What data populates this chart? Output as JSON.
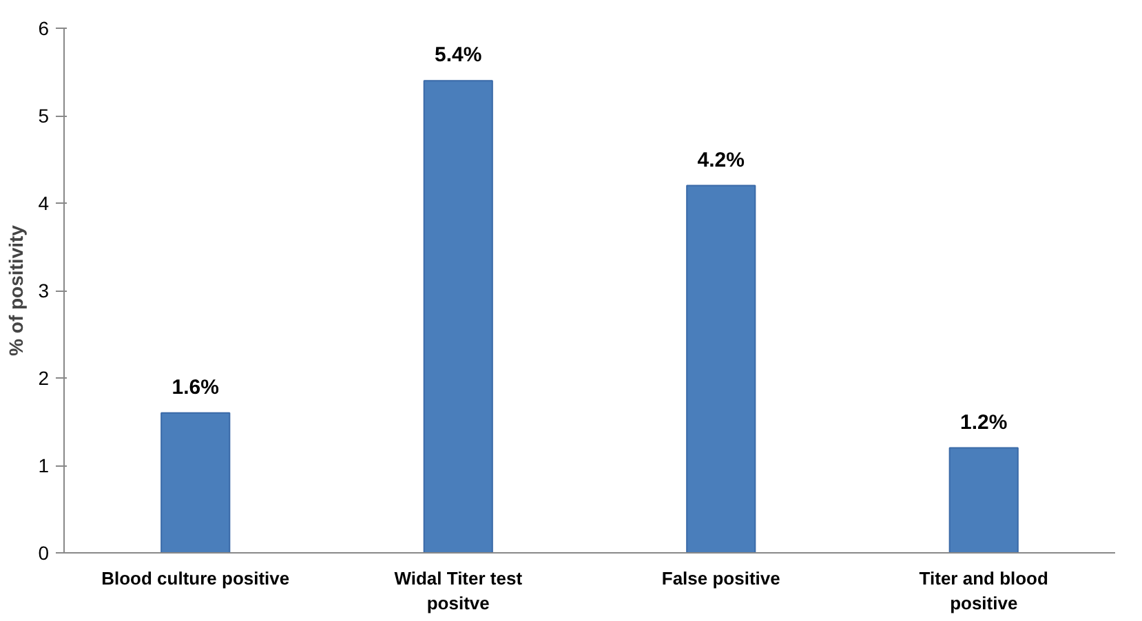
{
  "chart_data": {
    "type": "bar",
    "ylabel": "% of positivity",
    "categories": [
      "Blood culture positive",
      "Widal Titer test positve",
      "False positive",
      "Titer and blood positive"
    ],
    "values": [
      1.6,
      5.4,
      4.2,
      1.2
    ],
    "value_labels": [
      "1.6%",
      "5.4%",
      "4.2%",
      "1.2%"
    ],
    "color": "#4a7ebb",
    "ylim": [
      0,
      6
    ],
    "yticks": [
      0,
      1,
      2,
      3,
      4,
      5,
      6
    ],
    "grid": false
  }
}
